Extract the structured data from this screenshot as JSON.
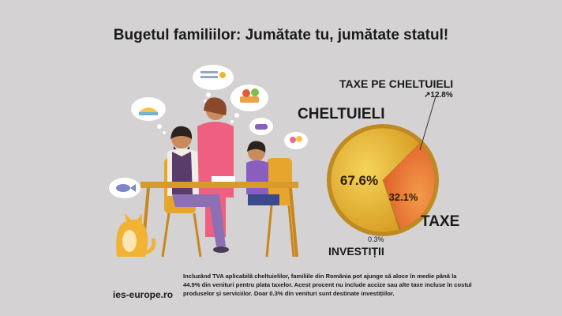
{
  "title": "Bugetul familiilor: Jumătate tu, jumătate statul!",
  "chart_data": {
    "type": "pie",
    "title": "Bugetul familiilor: Jumătate tu, jumătate statul!",
    "slices": [
      {
        "label": "CHELTUIELI",
        "value": 67.6,
        "display": "67.6%",
        "color": "#e8b833"
      },
      {
        "label": "TAXE",
        "value": 32.1,
        "display": "32.1%",
        "color": "#ee7a3a"
      },
      {
        "label": "INVESTIȚII",
        "value": 0.3,
        "display": "0.3%",
        "color": "#b8860b"
      }
    ],
    "sub_slice": {
      "label": "TAXE PE CHELTUIELI",
      "value": 12.8,
      "display": "↗12.8%",
      "color": "#f0a060"
    }
  },
  "labels": {
    "cheltuieli": "CHELTUIELI",
    "taxe_pe_cheltuieli": "TAXE PE CHELTUIELI",
    "taxe_pe_cheltuieli_value": "↗12.8%",
    "taxe": "TAXE",
    "investitii": "INVESTIȚII",
    "investitii_value": "0.3%"
  },
  "footer": {
    "site": "ies-europe.ro",
    "note": "Incluzând TVA aplicabilă cheltuielilor, familiile din România pot ajunge să aloce în medie până la 44.9% din venituri pentru plata taxelor. Acest procent nu include accize sau alte taxe incluse în costul produselor și serviciilor. Doar 0.3% din venituri sunt destinate investițiilor."
  }
}
